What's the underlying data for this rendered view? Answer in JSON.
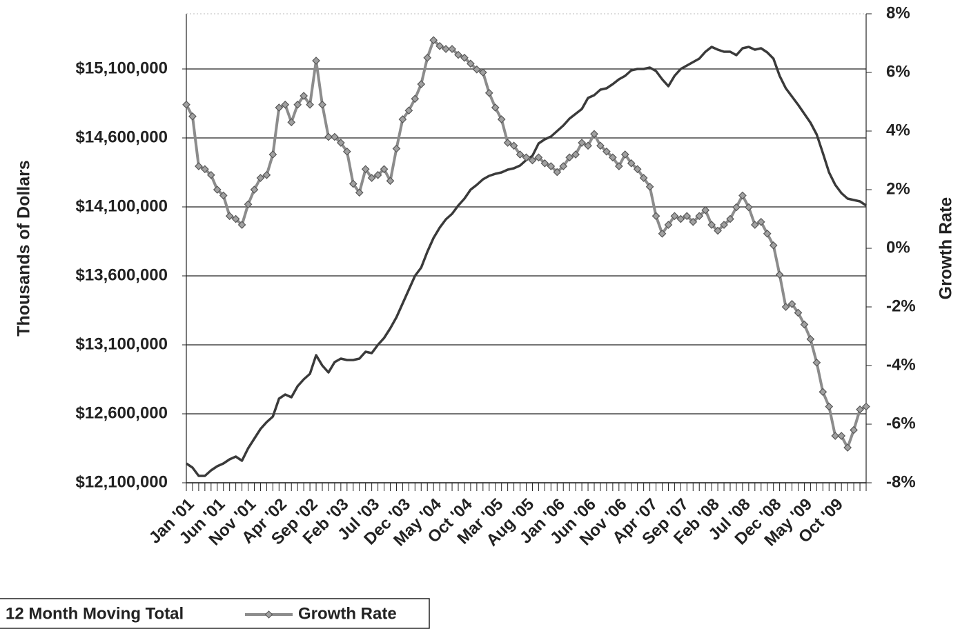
{
  "chart_data": {
    "type": "line",
    "y_label": "Thousands of Dollars",
    "y2_label": "Growth Rate",
    "categories": [
      "Jan '01",
      null,
      null,
      null,
      null,
      "Jun '01",
      null,
      null,
      null,
      null,
      "Nov '01",
      null,
      null,
      null,
      null,
      "Apr '02",
      null,
      null,
      null,
      null,
      "Sep '02",
      null,
      null,
      null,
      null,
      "Feb '03",
      null,
      null,
      null,
      null,
      "Jul '03",
      null,
      null,
      null,
      null,
      "Dec '03",
      null,
      null,
      null,
      null,
      "May '04",
      null,
      null,
      null,
      null,
      "Oct '04",
      null,
      null,
      null,
      null,
      "Mar '05",
      null,
      null,
      null,
      null,
      "Aug '05",
      null,
      null,
      null,
      null,
      "Jan '06",
      null,
      null,
      null,
      null,
      "Jun '06",
      null,
      null,
      null,
      null,
      "Nov '06",
      null,
      null,
      null,
      null,
      "Apr '07",
      null,
      null,
      null,
      null,
      "Sep '07",
      null,
      null,
      null,
      null,
      "Feb '08",
      null,
      null,
      null,
      null,
      "Jul '08",
      null,
      null,
      null,
      null,
      "Dec '08",
      null,
      null,
      null,
      null,
      "May '09",
      null,
      null,
      null,
      null,
      "Oct '09",
      null,
      null,
      null,
      null,
      null
    ],
    "series": [
      {
        "name": "12 Month Moving Total",
        "color": "#3a3a3a",
        "values": [
          12240000,
          12210000,
          12150000,
          12150000,
          12190000,
          12220000,
          12240000,
          12270000,
          12290000,
          12260000,
          12350000,
          12420000,
          12490000,
          12540000,
          12580000,
          12710000,
          12740000,
          12720000,
          12800000,
          12850000,
          12890000,
          13025000,
          12950000,
          12900000,
          12975000,
          13000000,
          12990000,
          12990000,
          13000000,
          13050000,
          13040000,
          13100000,
          13150000,
          13220000,
          13300000,
          13400000,
          13500000,
          13600000,
          13660000,
          13775000,
          13875000,
          13950000,
          14010000,
          14050000,
          14110000,
          14160000,
          14225000,
          14260000,
          14300000,
          14325000,
          14340000,
          14350000,
          14370000,
          14380000,
          14400000,
          14440000,
          14470000,
          14560000,
          14590000,
          14610000,
          14650000,
          14690000,
          14740000,
          14775000,
          14810000,
          14890000,
          14910000,
          14950000,
          14960000,
          14990000,
          15025000,
          15050000,
          15090000,
          15100000,
          15100000,
          15110000,
          15085000,
          15025000,
          14975000,
          15050000,
          15100000,
          15125000,
          15150000,
          15175000,
          15225000,
          15260000,
          15240000,
          15225000,
          15225000,
          15200000,
          15250000,
          15260000,
          15240000,
          15250000,
          15220000,
          15175000,
          15050000,
          14960000,
          14900000,
          14840000,
          14775000,
          14710000,
          14625000,
          14490000,
          14350000,
          14260000,
          14200000,
          14160000,
          14150000,
          14140000,
          14110000
        ]
      },
      {
        "name": "Growth Rate",
        "color": "#8c8c8c",
        "axis": "y2",
        "marker": "diamond",
        "values": [
          4.9,
          4.5,
          2.8,
          2.7,
          2.5,
          2.0,
          1.8,
          1.1,
          1.0,
          0.8,
          1.5,
          2.0,
          2.4,
          2.5,
          3.2,
          4.8,
          4.9,
          4.3,
          4.9,
          5.2,
          4.9,
          6.4,
          4.9,
          3.8,
          3.8,
          3.6,
          3.3,
          2.2,
          1.9,
          2.7,
          2.4,
          2.5,
          2.7,
          2.3,
          3.4,
          4.4,
          4.7,
          5.1,
          5.6,
          6.5,
          7.1,
          6.9,
          6.8,
          6.8,
          6.6,
          6.5,
          6.3,
          6.1,
          6.0,
          5.3,
          4.8,
          4.4,
          3.6,
          3.5,
          3.2,
          3.1,
          3.0,
          3.1,
          2.9,
          2.8,
          2.6,
          2.8,
          3.1,
          3.2,
          3.6,
          3.5,
          3.9,
          3.5,
          3.3,
          3.1,
          2.8,
          3.2,
          2.9,
          2.7,
          2.4,
          2.1,
          1.1,
          0.5,
          0.8,
          1.1,
          1.0,
          1.1,
          0.9,
          1.1,
          1.3,
          0.8,
          0.6,
          0.8,
          1.0,
          1.4,
          1.8,
          1.4,
          0.8,
          0.9,
          0.5,
          0.1,
          -0.9,
          -2.0,
          -1.9,
          -2.2,
          -2.6,
          -3.1,
          -3.9,
          -4.9,
          -5.4,
          -6.4,
          -6.4,
          -6.8,
          -6.2,
          -5.5,
          -5.4
        ]
      }
    ],
    "ylim": [
      12100000,
      15500000
    ],
    "yticks": [
      {
        "value": 12100000,
        "label": "$12,100,000"
      },
      {
        "value": 12600000,
        "label": "$12,600,000"
      },
      {
        "value": 13100000,
        "label": "$13,100,000"
      },
      {
        "value": 13600000,
        "label": "$13,600,000"
      },
      {
        "value": 14100000,
        "label": "$14,100,000"
      },
      {
        "value": 14600000,
        "label": "$14,600,000"
      },
      {
        "value": 15100000,
        "label": "$15,100,000"
      }
    ],
    "y2lim": [
      -8,
      8
    ],
    "y2ticks": [
      {
        "value": -8,
        "label": "-8%"
      },
      {
        "value": -6,
        "label": "-6%"
      },
      {
        "value": -4,
        "label": "-4%"
      },
      {
        "value": -2,
        "label": "-2%"
      },
      {
        "value": 0,
        "label": "0%"
      },
      {
        "value": 2,
        "label": "2%"
      },
      {
        "value": 4,
        "label": "4%"
      },
      {
        "value": 6,
        "label": "6%"
      },
      {
        "value": 8,
        "label": "8%"
      }
    ],
    "grid": true,
    "legend": "bottom-left"
  }
}
